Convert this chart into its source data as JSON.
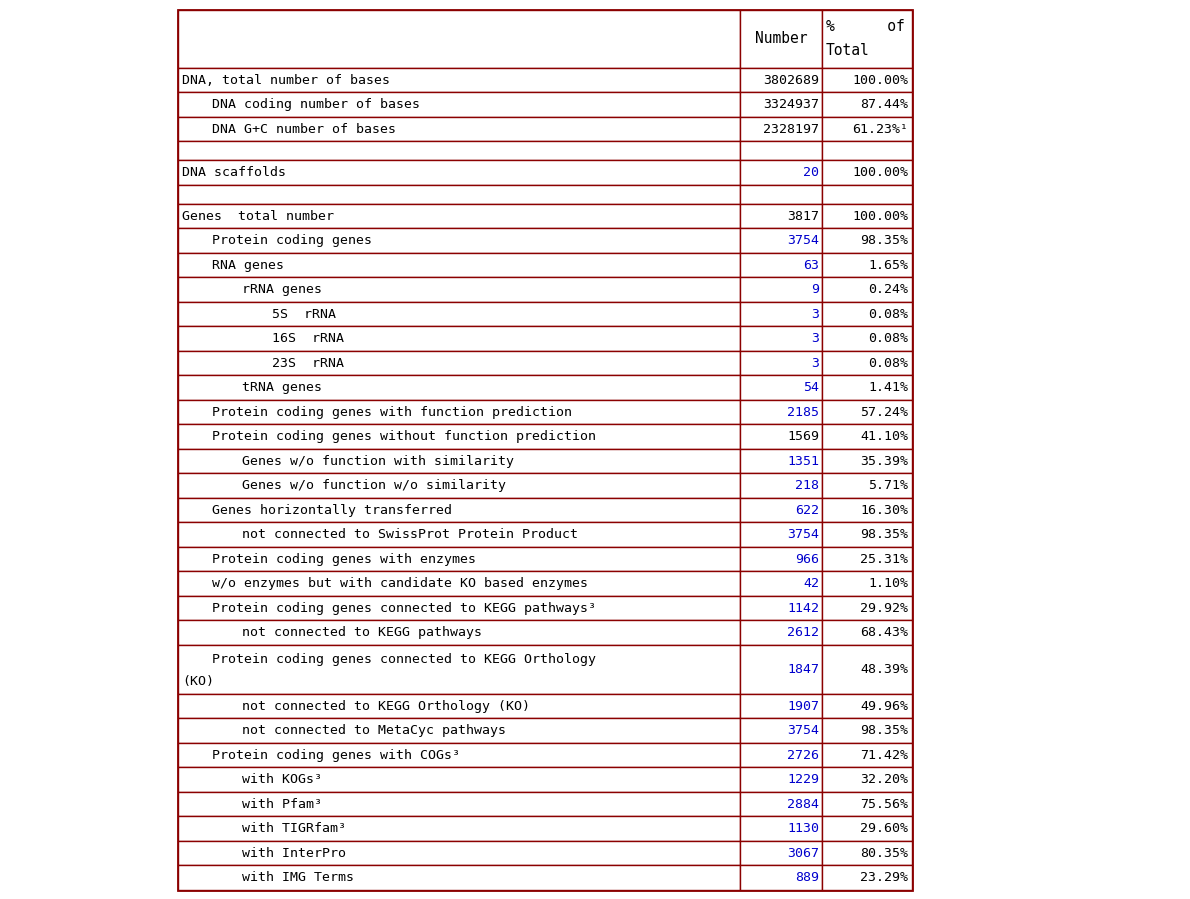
{
  "rows": [
    {
      "label": "DNA, total number of bases",
      "number": "3802689",
      "percent": "100.00%",
      "indent": 0,
      "num_blue": false,
      "empty": false
    },
    {
      "label": "DNA coding number of bases",
      "number": "3324937",
      "percent": "87.44%",
      "indent": 1,
      "num_blue": false,
      "empty": false
    },
    {
      "label": "DNA G+C number of bases",
      "number": "2328197",
      "percent": "61.23%¹",
      "indent": 1,
      "num_blue": false,
      "empty": false
    },
    {
      "label": "",
      "number": "",
      "percent": "",
      "indent": 0,
      "num_blue": false,
      "empty": true
    },
    {
      "label": "DNA scaffolds",
      "number": "20",
      "percent": "100.00%",
      "indent": 0,
      "num_blue": true,
      "empty": false
    },
    {
      "label": "",
      "number": "",
      "percent": "",
      "indent": 0,
      "num_blue": false,
      "empty": true
    },
    {
      "label": "Genes  total number",
      "number": "3817",
      "percent": "100.00%",
      "indent": 0,
      "num_blue": false,
      "empty": false
    },
    {
      "label": "Protein coding genes",
      "number": "3754",
      "percent": "98.35%",
      "indent": 1,
      "num_blue": true,
      "empty": false
    },
    {
      "label": "RNA genes",
      "number": "63",
      "percent": "1.65%",
      "indent": 1,
      "num_blue": true,
      "empty": false
    },
    {
      "label": "rRNA genes",
      "number": "9",
      "percent": "0.24%",
      "indent": 2,
      "num_blue": true,
      "empty": false
    },
    {
      "label": "5S  rRNA",
      "number": "3",
      "percent": "0.08%",
      "indent": 3,
      "num_blue": true,
      "empty": false
    },
    {
      "label": "16S  rRNA",
      "number": "3",
      "percent": "0.08%",
      "indent": 3,
      "num_blue": true,
      "empty": false
    },
    {
      "label": "23S  rRNA",
      "number": "3",
      "percent": "0.08%",
      "indent": 3,
      "num_blue": true,
      "empty": false
    },
    {
      "label": "tRNA genes",
      "number": "54",
      "percent": "1.41%",
      "indent": 2,
      "num_blue": true,
      "empty": false
    },
    {
      "label": "Protein coding genes with function prediction",
      "number": "2185",
      "percent": "57.24%",
      "indent": 1,
      "num_blue": true,
      "empty": false
    },
    {
      "label": "Protein coding genes without function prediction",
      "number": "1569",
      "percent": "41.10%",
      "indent": 1,
      "num_blue": false,
      "empty": false
    },
    {
      "label": "Genes w/o function with similarity",
      "number": "1351",
      "percent": "35.39%",
      "indent": 2,
      "num_blue": true,
      "empty": false
    },
    {
      "label": "Genes w/o function w/o similarity",
      "number": "218",
      "percent": "5.71%",
      "indent": 2,
      "num_blue": true,
      "empty": false
    },
    {
      "label": "Genes horizontally transferred",
      "number": "622",
      "percent": "16.30%",
      "indent": 1,
      "num_blue": true,
      "empty": false
    },
    {
      "label": "not connected to SwissProt Protein Product",
      "number": "3754",
      "percent": "98.35%",
      "indent": 2,
      "num_blue": true,
      "empty": false
    },
    {
      "label": "Protein coding genes with enzymes",
      "number": "966",
      "percent": "25.31%",
      "indent": 1,
      "num_blue": true,
      "empty": false
    },
    {
      "label": "w/o enzymes but with candidate KO based enzymes",
      "number": "42",
      "percent": "1.10%",
      "indent": 1,
      "num_blue": true,
      "empty": false
    },
    {
      "label": "Protein coding genes connected to KEGG pathways³",
      "number": "1142",
      "percent": "29.92%",
      "indent": 1,
      "num_blue": true,
      "empty": false
    },
    {
      "label": "not connected to KEGG pathways",
      "number": "2612",
      "percent": "68.43%",
      "indent": 2,
      "num_blue": true,
      "empty": false
    },
    {
      "label": "Protein coding genes connected to KEGG Orthology\n(KO)",
      "number": "1847",
      "percent": "48.39%",
      "indent": 1,
      "num_blue": true,
      "empty": false
    },
    {
      "label": "not connected to KEGG Orthology (KO)",
      "number": "1907",
      "percent": "49.96%",
      "indent": 2,
      "num_blue": true,
      "empty": false
    },
    {
      "label": "not connected to MetaCyc pathways",
      "number": "3754",
      "percent": "98.35%",
      "indent": 2,
      "num_blue": true,
      "empty": false
    },
    {
      "label": "Protein coding genes with COGs³",
      "number": "2726",
      "percent": "71.42%",
      "indent": 1,
      "num_blue": true,
      "empty": false
    },
    {
      "label": "with KOGs³",
      "number": "1229",
      "percent": "32.20%",
      "indent": 2,
      "num_blue": true,
      "empty": false
    },
    {
      "label": "with Pfam³",
      "number": "2884",
      "percent": "75.56%",
      "indent": 2,
      "num_blue": true,
      "empty": false
    },
    {
      "label": "with TIGRfam³",
      "number": "1130",
      "percent": "29.60%",
      "indent": 2,
      "num_blue": true,
      "empty": false
    },
    {
      "label": "with InterPro",
      "number": "3067",
      "percent": "80.35%",
      "indent": 2,
      "num_blue": true,
      "empty": false
    },
    {
      "label": "with IMG Terms",
      "number": "889",
      "percent": "23.29%",
      "indent": 2,
      "num_blue": true,
      "empty": false
    }
  ],
  "border_color": "#8B0000",
  "text_color_black": "#000000",
  "text_color_blue": "#0000CD",
  "bg_color": "#FFFFFF",
  "font_size": 9.5,
  "indent_per_level": 30
}
